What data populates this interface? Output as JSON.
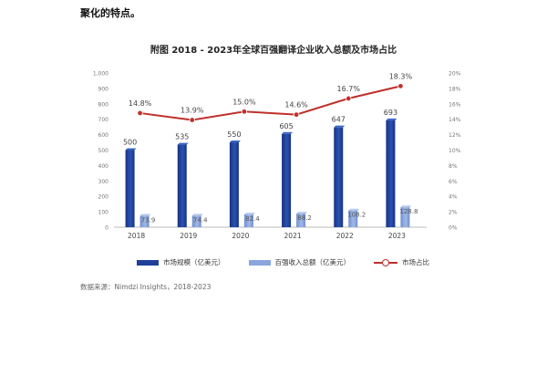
{
  "header_text": "聚化的特点。",
  "chart_data": {
    "type": "bar+line",
    "title": "附图    2018 - 2023年全球百强翻译企业收入总额及市场占比",
    "categories": [
      "2018",
      "2019",
      "2020",
      "2021",
      "2022",
      "2023"
    ],
    "series": [
      {
        "name": "市场规模（亿美元）",
        "type": "bar",
        "axis": "left",
        "color": "#1f3f9a",
        "values": [
          500,
          535,
          550,
          605,
          647,
          693
        ]
      },
      {
        "name": "百强收入总额（亿美元）",
        "type": "bar",
        "axis": "left",
        "color": "#8aa6dc",
        "values": [
          73.9,
          74.4,
          82.4,
          88.2,
          108.2,
          128.8
        ]
      },
      {
        "name": "市场占比",
        "type": "line",
        "axis": "right",
        "color": "#c0302b",
        "values": [
          14.8,
          13.9,
          15.0,
          14.6,
          16.7,
          18.3
        ]
      }
    ],
    "data_labels": {
      "bar1": [
        "500",
        "535",
        "550",
        "605",
        "647",
        "693"
      ],
      "bar2": [
        "73.9",
        "74.4",
        "82.4",
        "88.2",
        "108.2",
        "128.8"
      ],
      "line": [
        "14.8%",
        "13.9%",
        "15.0%",
        "14.6%",
        "16.7%",
        "18.3%"
      ]
    },
    "y_left": {
      "min": 0,
      "max": 1000,
      "step": 100,
      "ticks": [
        "0",
        "100",
        "200",
        "300",
        "400",
        "500",
        "600",
        "700",
        "800",
        "900",
        "1,000"
      ]
    },
    "y_right": {
      "min": 0,
      "max": 20,
      "step": 2,
      "ticks": [
        "0%",
        "2%",
        "4%",
        "6%",
        "8%",
        "10%",
        "12%",
        "14%",
        "16%",
        "18%",
        "20%"
      ]
    },
    "legend_position": "bottom",
    "grid": false
  },
  "source": "数据来源：Nimdzi Insights，2018-2023"
}
